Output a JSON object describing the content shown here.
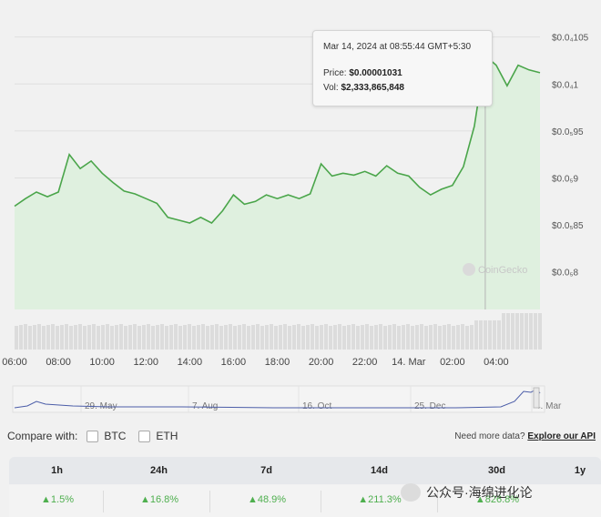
{
  "chart_data": {
    "type": "area",
    "y_tick_labels": [
      "$0.0₄105",
      "$0.0₄1",
      "$0.0₅95",
      "$0.0₅9",
      "$0.0₅85",
      "$0.0₅8"
    ],
    "y_tick_values": [
      1.05e-05,
      1e-05,
      9.5e-06,
      9e-06,
      8.5e-06,
      8e-06
    ],
    "ylim": [
      7.6e-06,
      1.07e-05
    ],
    "x_tick_labels": [
      "06:00",
      "08:00",
      "10:00",
      "12:00",
      "14:00",
      "16:00",
      "18:00",
      "20:00",
      "22:00",
      "14. Mar",
      "02:00",
      "04:00"
    ],
    "x_hours": [
      0,
      0.5,
      1,
      1.5,
      2,
      2.5,
      3,
      3.5,
      4,
      4.5,
      5,
      5.5,
      6,
      6.5,
      7,
      7.5,
      8,
      8.5,
      9,
      9.5,
      10,
      10.5,
      11,
      11.5,
      12,
      12.5,
      13,
      13.5,
      14,
      14.5,
      15,
      15.5,
      16,
      16.5,
      17,
      17.5,
      18,
      18.5,
      19,
      19.5,
      20,
      20.5,
      21,
      21.5,
      22,
      22.5,
      23,
      23.5,
      24
    ],
    "price": [
      8.7e-06,
      8.78e-06,
      8.85e-06,
      8.8e-06,
      8.85e-06,
      9.25e-06,
      9.1e-06,
      9.18e-06,
      9.05e-06,
      8.95e-06,
      8.86e-06,
      8.83e-06,
      8.78e-06,
      8.73e-06,
      8.58e-06,
      8.55e-06,
      8.52e-06,
      8.58e-06,
      8.52e-06,
      8.65e-06,
      8.82e-06,
      8.72e-06,
      8.75e-06,
      8.82e-06,
      8.78e-06,
      8.82e-06,
      8.78e-06,
      8.83e-06,
      9.15e-06,
      9.02e-06,
      9.05e-06,
      9.03e-06,
      9.07e-06,
      9.02e-06,
      9.13e-06,
      9.05e-06,
      9.02e-06,
      8.9e-06,
      8.82e-06,
      8.88e-06,
      8.92e-06,
      9.12e-06,
      9.55e-06,
      1.03e-05,
      1.02e-05,
      9.98e-06,
      1.02e-05,
      1.015e-05,
      1.012e-05
    ],
    "tooltip": {
      "date": "Mar 14, 2024 at 08:55:44 GMT+5:30",
      "price_label": "Price:",
      "price": "$0.00001031",
      "vol_label": "Vol:",
      "vol": "$2,333,865,848"
    },
    "navigator_labels": [
      "29. May",
      "7. Aug",
      "16. Oct",
      "25. Dec",
      "4. Mar"
    ],
    "colors": {
      "line": "#4aa54a",
      "area": "#dff0df",
      "volume": "#dcdcdc",
      "navigator": "#4b5da8"
    },
    "watermark": "CoinGecko"
  },
  "compare": {
    "label": "Compare with:",
    "options": [
      "BTC",
      "ETH"
    ],
    "more_text": "Need more data?",
    "api_link": "Explore our API"
  },
  "performance": {
    "headers": [
      "1h",
      "24h",
      "7d",
      "14d",
      "30d",
      "1y"
    ],
    "values": [
      "▲1.5%",
      "▲16.8%",
      "▲48.9%",
      "▲211.3%",
      "▲826.8%",
      ""
    ]
  },
  "overlay": {
    "text": "公众号·海绵进化论"
  }
}
